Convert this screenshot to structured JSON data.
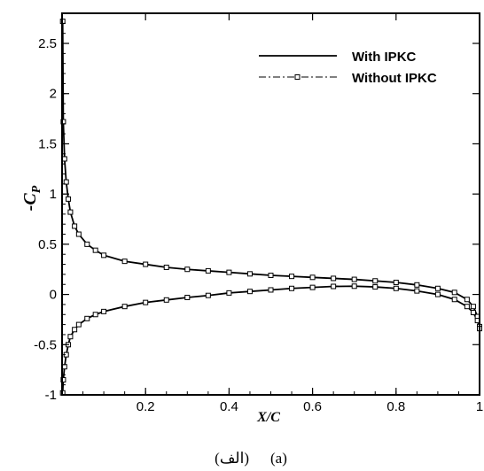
{
  "caption": {
    "left": "(الف)",
    "right": "(a)"
  },
  "chart_data": {
    "type": "line",
    "xlabel": "X/C",
    "ylabel": "-C",
    "ylabel_subscript": "P",
    "xlim": [
      0.0,
      1.0
    ],
    "ylim": [
      -1.0,
      2.8
    ],
    "x_ticks": [
      0.2,
      0.4,
      0.6,
      0.8,
      1.0
    ],
    "x_tick_labels": [
      "0.2",
      "0.4",
      "0.6",
      "0.8",
      "1"
    ],
    "y_ticks": [
      -1.0,
      -0.5,
      0.0,
      0.5,
      1.0,
      1.5,
      2.0,
      2.5
    ],
    "y_tick_labels": [
      "-1",
      "-0.5",
      "0",
      "0.5",
      "1",
      "1.5",
      "2",
      "2.5"
    ],
    "grid": false,
    "legend_position": "top-right",
    "series": [
      {
        "name": "With IPKC",
        "style": "solid",
        "color": "#000000",
        "x": [
          0.0015,
          0.003,
          0.006,
          0.01,
          0.015,
          0.02,
          0.03,
          0.04,
          0.06,
          0.08,
          0.1,
          0.15,
          0.2,
          0.25,
          0.3,
          0.35,
          0.4,
          0.45,
          0.5,
          0.55,
          0.6,
          0.65,
          0.7,
          0.75,
          0.8,
          0.85,
          0.9,
          0.94,
          0.97,
          0.985,
          0.995,
          1.0
        ],
        "upper": [
          2.72,
          1.72,
          1.35,
          1.12,
          0.95,
          0.82,
          0.68,
          0.6,
          0.5,
          0.44,
          0.39,
          0.33,
          0.3,
          0.27,
          0.25,
          0.235,
          0.22,
          0.205,
          0.19,
          0.18,
          0.17,
          0.16,
          0.15,
          0.135,
          0.12,
          0.095,
          0.06,
          0.02,
          -0.05,
          -0.12,
          -0.22,
          -0.32
        ],
        "lower": [
          -0.98,
          -0.85,
          -0.72,
          -0.6,
          -0.5,
          -0.42,
          -0.35,
          -0.3,
          -0.24,
          -0.2,
          -0.17,
          -0.12,
          -0.08,
          -0.055,
          -0.03,
          -0.01,
          0.015,
          0.03,
          0.045,
          0.06,
          0.07,
          0.08,
          0.082,
          0.075,
          0.06,
          0.035,
          0.0,
          -0.05,
          -0.12,
          -0.18,
          -0.26,
          -0.34
        ]
      },
      {
        "name": "Without IPKC",
        "style": "dash-dot with square markers",
        "color": "#000000",
        "x": [
          0.0015,
          0.003,
          0.006,
          0.01,
          0.015,
          0.02,
          0.03,
          0.04,
          0.06,
          0.08,
          0.1,
          0.15,
          0.2,
          0.25,
          0.3,
          0.35,
          0.4,
          0.45,
          0.5,
          0.55,
          0.6,
          0.65,
          0.7,
          0.75,
          0.8,
          0.85,
          0.9,
          0.94,
          0.97,
          0.985,
          0.995,
          1.0
        ],
        "upper": [
          2.72,
          1.72,
          1.35,
          1.12,
          0.95,
          0.82,
          0.68,
          0.6,
          0.5,
          0.44,
          0.39,
          0.33,
          0.3,
          0.27,
          0.25,
          0.235,
          0.22,
          0.205,
          0.19,
          0.18,
          0.17,
          0.16,
          0.15,
          0.135,
          0.12,
          0.095,
          0.06,
          0.02,
          -0.05,
          -0.12,
          -0.22,
          -0.32
        ],
        "lower": [
          -0.98,
          -0.85,
          -0.72,
          -0.6,
          -0.5,
          -0.42,
          -0.35,
          -0.3,
          -0.24,
          -0.2,
          -0.17,
          -0.12,
          -0.08,
          -0.055,
          -0.03,
          -0.01,
          0.015,
          0.03,
          0.045,
          0.06,
          0.07,
          0.08,
          0.082,
          0.075,
          0.06,
          0.035,
          0.0,
          -0.05,
          -0.12,
          -0.18,
          -0.26,
          -0.34
        ]
      }
    ]
  }
}
